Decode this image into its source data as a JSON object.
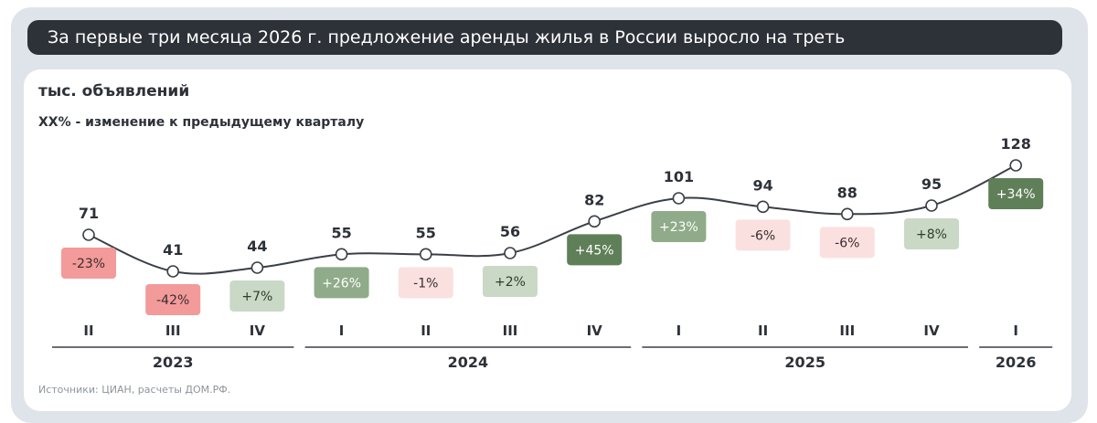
{
  "header": {
    "title": "За первые три месяца 2026 г. предложение аренды жилья в России выросло на треть"
  },
  "labels": {
    "unit": "тыс. объявлений",
    "change_note": "XX% - изменение к предыдущему кварталу",
    "source": "Источники: ЦИАН, расчеты ДОМ.РФ."
  },
  "colors": {
    "line": "#3a3f47",
    "strong_positive": "#5f7f58",
    "light_positive": "#c9d9c5",
    "strong_negative": "#f39a9a",
    "light_negative": "#fbe0e0"
  },
  "chart_data": {
    "type": "line",
    "categories": [
      "II",
      "III",
      "IV",
      "I",
      "II",
      "III",
      "IV",
      "I",
      "II",
      "III",
      "IV",
      "I"
    ],
    "years": [
      {
        "label": "2023",
        "span": [
          0,
          2
        ]
      },
      {
        "label": "2024",
        "span": [
          3,
          6
        ]
      },
      {
        "label": "2025",
        "span": [
          7,
          10
        ]
      },
      {
        "label": "2026",
        "span": [
          11,
          11
        ]
      }
    ],
    "series": [
      {
        "values": [
          71,
          41,
          44,
          55,
          55,
          56,
          82,
          101,
          94,
          88,
          95,
          128
        ],
        "value_labels": [
          "71",
          "41",
          "44",
          "55",
          "55",
          "56",
          "82",
          "101",
          "94",
          "88",
          "95",
          "128"
        ],
        "changes": [
          "-23%",
          "-42%",
          "+7%",
          "+26%",
          "-1%",
          "+2%",
          "+45%",
          "+23%",
          "-6%",
          "-6%",
          "+8%",
          "+34%"
        ],
        "change_styles": [
          "neg-strong",
          "neg-strong",
          "pos-light",
          "pos-mid",
          "neg-light",
          "pos-light",
          "pos-strong",
          "pos-mid",
          "neg-light",
          "neg-light",
          "pos-light",
          "pos-strong"
        ],
        "change_position": [
          "below",
          "below",
          "below",
          "below",
          "below",
          "below",
          "below",
          "below",
          "below",
          "below",
          "below",
          "below"
        ]
      }
    ],
    "ylim": [
      0,
      140
    ],
    "grid": false,
    "legend": "none"
  }
}
